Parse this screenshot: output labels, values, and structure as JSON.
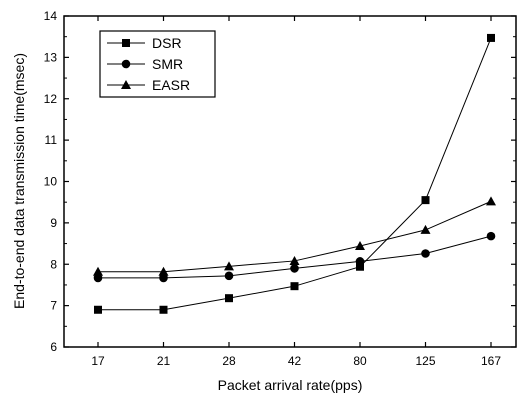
{
  "chart_data": {
    "type": "line",
    "title": "",
    "xlabel": "Packet arrival rate(pps)",
    "ylabel": "End-to-end data transmission time(msec)",
    "categories": [
      "17",
      "21",
      "28",
      "42",
      "80",
      "125",
      "167"
    ],
    "ylim": [
      6,
      14
    ],
    "yticks": [
      "6",
      "7",
      "8",
      "9",
      "10",
      "11",
      "12",
      "13",
      "14"
    ],
    "grid": false,
    "legend_position": "top-left",
    "series": [
      {
        "name": "DSR",
        "marker": "square",
        "values": [
          6.9,
          6.9,
          7.18,
          7.47,
          7.94,
          9.55,
          13.47
        ]
      },
      {
        "name": "SMR",
        "marker": "circle",
        "values": [
          7.67,
          7.67,
          7.72,
          7.9,
          8.07,
          8.26,
          8.68
        ]
      },
      {
        "name": "EASR",
        "marker": "triangle",
        "values": [
          7.82,
          7.82,
          7.95,
          8.08,
          8.44,
          8.83,
          9.52
        ]
      }
    ],
    "colors": {
      "line": "#000000",
      "marker": "#000000",
      "background": "#ffffff"
    }
  }
}
